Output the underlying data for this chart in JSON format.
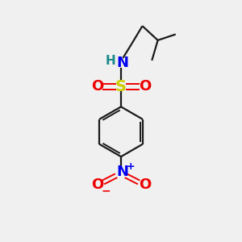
{
  "bg_color": "#f0f0f0",
  "bond_color": "#1a1a1a",
  "S_color": "#cccc00",
  "N_color": "#0000ee",
  "O_color": "#ee0000",
  "H_color": "#1a8a8a",
  "figsize": [
    3.0,
    3.0
  ],
  "dpi": 100,
  "xlim": [
    0,
    10
  ],
  "ylim": [
    0,
    10
  ]
}
